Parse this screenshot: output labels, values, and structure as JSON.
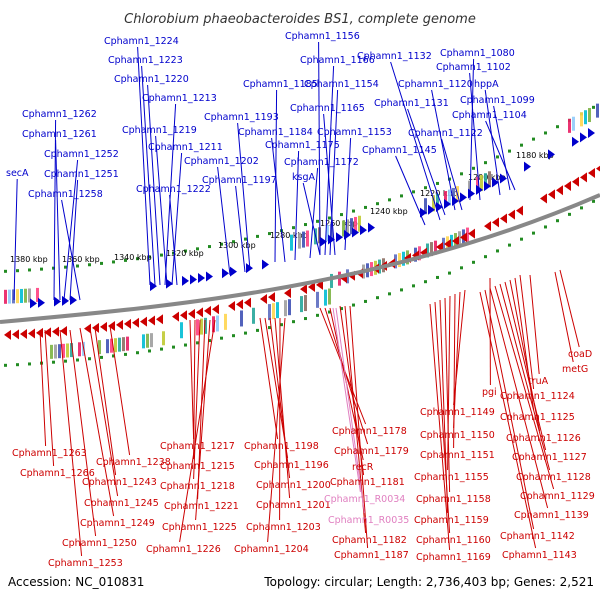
{
  "header": {
    "title": "Chlorobium phaeobacteroides BS1, complete genome"
  },
  "footer": {
    "accession": "Accession: NC_010831",
    "summary": "Topology: circular; Length: 2,736,403 bp; Genes: 2,521"
  },
  "colors": {
    "forward_strand": "#0000cc",
    "reverse_strand": "#cc0000",
    "rna_feature": "#e07fc0",
    "backbone": "#888888",
    "tick_marks": "#228b22"
  },
  "ruler": {
    "ticks": [
      "1380 kbp",
      "1360 kbp",
      "1340 kbp",
      "1320 kbp",
      "1300 kbp",
      "1280 kbp",
      "1260 kbp",
      "1240 kbp",
      "1220 kbp",
      "1200 kbp",
      "1180 kbp"
    ]
  },
  "forward_labels": [
    "Cphamn1_1224",
    "Cphamn1_1223",
    "Cphamn1_1220",
    "Cphamn1_1213",
    "Cphamn1_1219",
    "Cphamn1_1211",
    "Cphamn1_1222",
    "Cphamn1_1262",
    "Cphamn1_1261",
    "Cphamn1_1252",
    "Cphamn1_1251",
    "Cphamn1_1258",
    "secA",
    "Cphamn1_1156",
    "Cphamn1_1166",
    "Cphamn1_1185",
    "Cphamn1_1154",
    "Cphamn1_1165",
    "Cphamn1_1193",
    "Cphamn1_1184",
    "Cphamn1_1153",
    "Cphamn1_1175",
    "Cphamn1_1202",
    "Cphamn1_1172",
    "Cphamn1_1197",
    "ksgA",
    "Cphamn1_1132",
    "Cphamn1_1080",
    "Cphamn1_1102",
    "Cphamn1_1120",
    "hppA",
    "Cphamn1_1131",
    "Cphamn1_1099",
    "Cphamn1_1104",
    "Cphamn1_1122",
    "Cphamn1_1145"
  ],
  "reverse_labels": [
    "coaD",
    "metG",
    "truA",
    "Cphamn1_1124",
    "pgi",
    "Cphamn1_1125",
    "Cphamn1_1149",
    "Cphamn1_1126",
    "Cphamn1_1150",
    "Cphamn1_1127",
    "Cphamn1_1151",
    "Cphamn1_1128",
    "Cphamn1_1155",
    "Cphamn1_1129",
    "Cphamn1_1158",
    "Cphamn1_1139",
    "Cphamn1_1159",
    "Cphamn1_1142",
    "Cphamn1_1160",
    "Cphamn1_1143",
    "Cphamn1_1169",
    "Cphamn1_1178",
    "Cphamn1_1179",
    "recR",
    "Cphamn1_1181",
    "Cphamn1_1182",
    "Cphamn1_1187",
    "Cphamn1_1217",
    "Cphamn1_1198",
    "Cphamn1_1215",
    "Cphamn1_1196",
    "Cphamn1_1218",
    "Cphamn1_1200",
    "Cphamn1_1221",
    "Cphamn1_1201",
    "Cphamn1_1225",
    "Cphamn1_1203",
    "Cphamn1_1226",
    "Cphamn1_1204",
    "Cphamn1_1263",
    "Cphamn1_1266",
    "Cphamn1_1238",
    "Cphamn1_1243",
    "Cphamn1_1245",
    "Cphamn1_1249",
    "Cphamn1_1250",
    "Cphamn1_1253"
  ],
  "rna_labels": [
    "Cphamn1_R0034",
    "Cphamn1_R0035"
  ]
}
